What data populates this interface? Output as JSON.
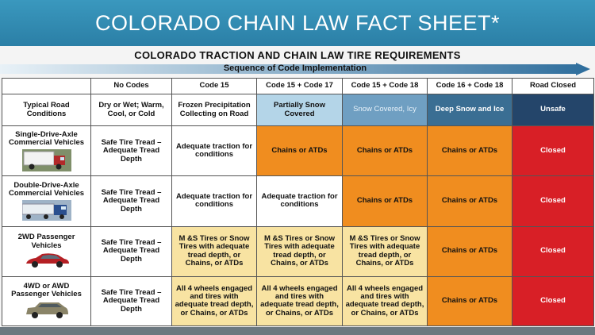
{
  "banner_title": "COLORADO CHAIN LAW FACT SHEET*",
  "subtitle": "COLORADO TRACTION AND CHAIN LAW TIRE REQUIREMENTS",
  "sequence_label": "Sequence of Code Implementation",
  "columns": [
    "No Codes",
    "Code 15",
    "Code 15 + Code 17",
    "Code 15 + Code 18",
    "Code 16 + Code 18",
    "Road Closed"
  ],
  "conditions_label": "Typical Road Conditions",
  "conditions": [
    "Dry or Wet; Warm, Cool, or Cold",
    "Frozen Precipitation Collecting on Road",
    "Partially Snow Covered",
    "Snow Covered, Icy",
    "Deep Snow and Ice",
    "Unsafe"
  ],
  "rows": [
    {
      "vehicle": "Single-Drive-Axle Commercial Vehicles",
      "icon": "box-truck-icon",
      "cells": [
        "Safe Tire Tread – Adequate Tread Depth",
        "Adequate traction for conditions",
        "Chains or ATDs",
        "Chains or ATDs",
        "Chains or ATDs",
        "Closed"
      ]
    },
    {
      "vehicle": "Double-Drive-Axle Commercial Vehicles",
      "icon": "semi-truck-icon",
      "cells": [
        "Safe Tire Tread – Adequate Tread Depth",
        "Adequate traction for conditions",
        "Adequate traction for conditions",
        "Chains or ATDs",
        "Chains or ATDs",
        "Closed"
      ]
    },
    {
      "vehicle": "2WD Passenger Vehicles",
      "icon": "sedan-icon",
      "cells": [
        "Safe Tire Tread – Adequate Tread Depth",
        "M &S Tires or Snow Tires with adequate tread depth, or Chains, or ATDs",
        "M &S Tires or Snow Tires with adequate tread depth, or Chains, or ATDs",
        "M &S Tires or Snow Tires with adequate tread depth, or Chains, or ATDs",
        "Chains or ATDs",
        "Closed"
      ]
    },
    {
      "vehicle": "4WD or AWD Passenger Vehicles",
      "icon": "suv-icon",
      "cells": [
        "Safe Tire Tread – Adequate Tread Depth",
        "All 4 wheels engaged and tires with adequate tread depth, or Chains, or ATDs",
        "All 4 wheels engaged and tires with adequate tread depth, or Chains, or ATDs",
        "All 4 wheels engaged and tires with adequate tread depth, or Chains, or ATDs",
        "Chains or ATDs",
        "Closed"
      ]
    }
  ],
  "colors": {
    "banner": "#2f8ab3",
    "orange": "#f08d1f",
    "red": "#d81f26",
    "yellow": "#f8e3a2"
  }
}
